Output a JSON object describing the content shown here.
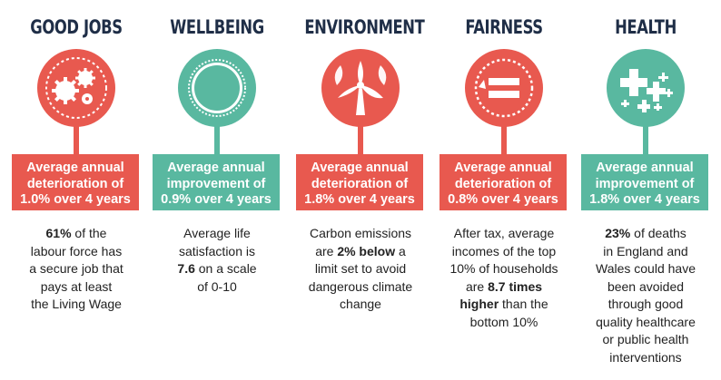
{
  "colors": {
    "red": "#e8594f",
    "teal": "#59b8a0",
    "title": "#1f2e47"
  },
  "columns": [
    {
      "title": "GOOD JOBS",
      "icon": "gears-icon",
      "badge": [
        "Average annual",
        "deterioration of",
        "1.0% over 4 years"
      ],
      "desc": [
        {
          "b": "61%",
          "t": " of the"
        },
        {
          "t": "labour force has"
        },
        {
          "t": "a secure job that"
        },
        {
          "t": "pays at least"
        },
        {
          "t": "the Living Wage"
        }
      ]
    },
    {
      "title": "WELLBEING",
      "icon": "sun-icon",
      "badge": [
        "Average annual",
        "improvement of",
        "0.9% over 4 years"
      ],
      "desc": [
        {
          "t": "Average life"
        },
        {
          "t": "satisfaction is"
        },
        {
          "b": "7.6",
          "t": " on a scale"
        },
        {
          "t": "of 0-10"
        }
      ]
    },
    {
      "title": "ENVIRONMENT",
      "icon": "wind-turbine-icon",
      "badge": [
        "Average annual",
        "deterioration of",
        "1.8% over 4 years"
      ],
      "desc": [
        {
          "t": "Carbon emissions"
        },
        {
          "t": "are ",
          "b": "2% below",
          "t2": " a"
        },
        {
          "t": "limit set to avoid"
        },
        {
          "t": "dangerous climate"
        },
        {
          "t": "change"
        }
      ]
    },
    {
      "title": "FAIRNESS",
      "icon": "equals-icon",
      "badge": [
        "Average annual",
        "deterioration of",
        "0.8% over 4 years"
      ],
      "desc": [
        {
          "t": "After tax, average"
        },
        {
          "t": "incomes of the top"
        },
        {
          "t": "10% of households"
        },
        {
          "t": "are ",
          "b": "8.7 times"
        },
        {
          "b": "higher",
          "t": " than the"
        },
        {
          "t": "bottom 10%"
        }
      ]
    },
    {
      "title": "HEALTH",
      "icon": "health-crosses-icon",
      "badge": [
        "Average annual",
        "improvement of",
        "1.8% over 4 years"
      ],
      "desc": [
        {
          "b": "23%",
          "t": " of deaths"
        },
        {
          "t": "in England and"
        },
        {
          "t": "Wales could have"
        },
        {
          "t": "been avoided"
        },
        {
          "t": "through good"
        },
        {
          "t": "quality healthcare"
        },
        {
          "t": "or public health"
        },
        {
          "t": "interventions"
        }
      ]
    }
  ]
}
